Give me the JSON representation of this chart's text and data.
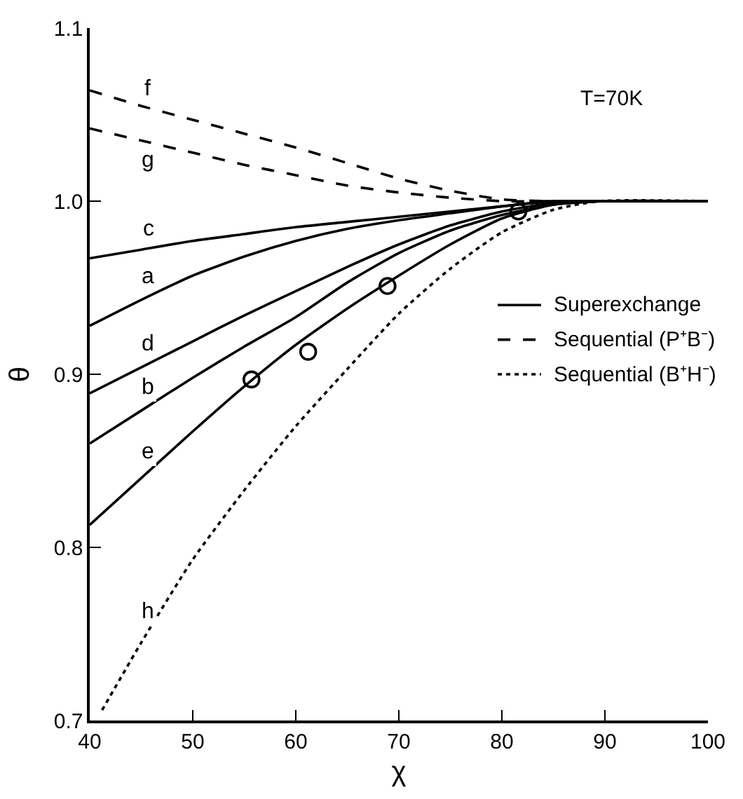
{
  "chart_data": {
    "type": "line",
    "xlabel": "χ",
    "ylabel": "θ",
    "xlim": [
      40,
      100
    ],
    "ylim": [
      0.7,
      1.1
    ],
    "xticks": [
      40,
      50,
      60,
      70,
      80,
      90,
      100
    ],
    "yticks": [
      0.7,
      0.8,
      0.9,
      {
        "value": 1.0,
        "label": "1.0"
      },
      1.1
    ],
    "grid": false,
    "marker": "none",
    "x": [
      40,
      45,
      50,
      55,
      60,
      65,
      70,
      75,
      80,
      85,
      90,
      100
    ],
    "series": [
      {
        "name": "c",
        "color": "#000000",
        "line_style": "solid",
        "values": [
          0.967,
          0.972,
          0.977,
          0.981,
          0.985,
          0.988,
          0.991,
          0.994,
          0.997,
          1.0,
          1.0,
          1.0
        ]
      },
      {
        "name": "a",
        "color": "#000000",
        "line_style": "solid",
        "values": [
          0.928,
          0.943,
          0.957,
          0.968,
          0.977,
          0.984,
          0.989,
          0.993,
          0.997,
          1.0,
          1.0,
          1.0
        ]
      },
      {
        "name": "d",
        "color": "#000000",
        "line_style": "solid",
        "values": [
          0.889,
          0.904,
          0.919,
          0.934,
          0.948,
          0.962,
          0.975,
          0.986,
          0.994,
          0.999,
          1.0,
          1.0
        ]
      },
      {
        "name": "b",
        "color": "#000000",
        "line_style": "solid",
        "values": [
          0.86,
          0.879,
          0.898,
          0.916,
          0.933,
          0.953,
          0.97,
          0.983,
          0.992,
          0.998,
          1.0,
          1.0
        ]
      },
      {
        "name": "e",
        "color": "#000000",
        "line_style": "solid",
        "values": [
          0.813,
          0.84,
          0.867,
          0.893,
          0.917,
          0.938,
          0.957,
          0.975,
          0.99,
          0.998,
          1.0,
          1.0
        ]
      },
      {
        "name": "f",
        "color": "#000000",
        "line_style": "dashed",
        "values": [
          1.064,
          1.055,
          1.047,
          1.039,
          1.031,
          1.022,
          1.013,
          1.006,
          1.001,
          1.0,
          1.0,
          1.0
        ]
      },
      {
        "name": "g",
        "color": "#000000",
        "line_style": "dashed",
        "values": [
          1.042,
          1.035,
          1.028,
          1.021,
          1.015,
          1.009,
          1.005,
          1.002,
          1.0,
          1.0,
          1.0,
          1.0
        ]
      },
      {
        "name": "h",
        "color": "#000000",
        "line_style": "dotted",
        "x": [
          41.2,
          45,
          50,
          55,
          60,
          65,
          70,
          75,
          80,
          85,
          89.5,
          100
        ],
        "values": [
          0.706,
          0.745,
          0.793,
          0.833,
          0.87,
          0.903,
          0.935,
          0.961,
          0.982,
          0.995,
          1.0,
          1.0
        ]
      },
      {
        "type": "scatter",
        "color": "#000000",
        "marker": "circle",
        "x": [
          55.7,
          61.2,
          68.9,
          81.6
        ],
        "values": [
          0.897,
          0.913,
          0.951,
          0.994
        ]
      }
    ],
    "annotations": [
      "T=70K",
      "Superexchange",
      "Sequential (P⁺B⁻)",
      "Sequential (B⁺H⁻)"
    ]
  }
}
